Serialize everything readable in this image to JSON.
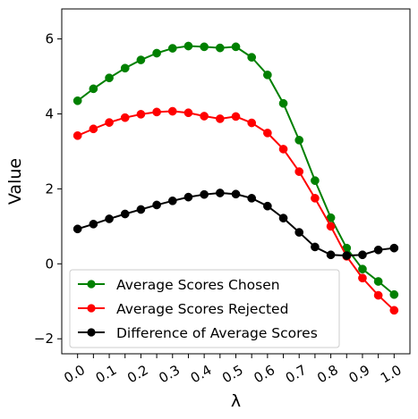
{
  "chart_data": {
    "type": "line",
    "xlabel": "λ",
    "ylabel": "Value",
    "xlim": [
      -0.05,
      1.05
    ],
    "ylim": [
      -2.4,
      6.8
    ],
    "x": [
      0.0,
      0.05,
      0.1,
      0.15,
      0.2,
      0.25,
      0.3,
      0.35,
      0.4,
      0.45,
      0.5,
      0.55,
      0.6,
      0.65,
      0.7,
      0.75,
      0.8,
      0.85,
      0.9,
      0.95,
      1.0
    ],
    "xticks": [
      {
        "value": 0.0,
        "label": "0.0"
      },
      {
        "value": 0.1,
        "label": "0.1"
      },
      {
        "value": 0.2,
        "label": "0.2"
      },
      {
        "value": 0.3,
        "label": "0.3"
      },
      {
        "value": 0.4,
        "label": "0.4"
      },
      {
        "value": 0.5,
        "label": "0.5"
      },
      {
        "value": 0.6,
        "label": "0.6"
      },
      {
        "value": 0.7,
        "label": "0.7"
      },
      {
        "value": 0.8,
        "label": "0.8"
      },
      {
        "value": 0.9,
        "label": "0.9"
      },
      {
        "value": 1.0,
        "label": "1.0"
      }
    ],
    "minor_xticks": [
      0.05,
      0.15,
      0.25,
      0.35,
      0.45,
      0.55,
      0.65,
      0.75,
      0.85,
      0.95
    ],
    "yticks": [
      {
        "value": -2,
        "label": "−2"
      },
      {
        "value": 0,
        "label": "0"
      },
      {
        "value": 2,
        "label": "2"
      },
      {
        "value": 4,
        "label": "4"
      },
      {
        "value": 6,
        "label": "6"
      }
    ],
    "grid": false,
    "legend_position": "bottom-left",
    "series": [
      {
        "name": "Average Scores Chosen",
        "color": "#008000",
        "values": [
          4.35,
          4.67,
          4.96,
          5.22,
          5.44,
          5.62,
          5.75,
          5.81,
          5.79,
          5.76,
          5.79,
          5.51,
          5.04,
          4.28,
          3.3,
          2.22,
          1.23,
          0.42,
          -0.14,
          -0.47,
          -0.82
        ]
      },
      {
        "name": "Average Scores Rejected",
        "color": "#ff0000",
        "values": [
          3.42,
          3.6,
          3.77,
          3.9,
          3.99,
          4.05,
          4.07,
          4.03,
          3.94,
          3.87,
          3.93,
          3.76,
          3.49,
          3.06,
          2.46,
          1.75,
          1.0,
          0.2,
          -0.38,
          -0.84,
          -1.24
        ]
      },
      {
        "name": "Difference of Average Scores",
        "color": "#000000",
        "values": [
          0.93,
          1.06,
          1.2,
          1.33,
          1.45,
          1.57,
          1.68,
          1.78,
          1.85,
          1.89,
          1.86,
          1.75,
          1.54,
          1.22,
          0.84,
          0.45,
          0.24,
          0.22,
          0.24,
          0.37,
          0.42
        ]
      }
    ]
  }
}
